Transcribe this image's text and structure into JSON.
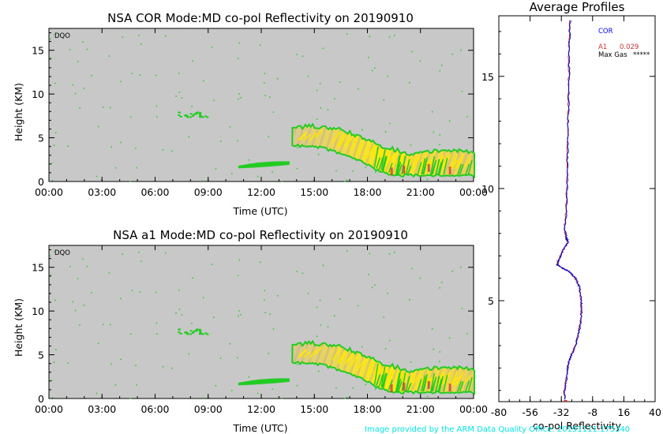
{
  "chart_data": [
    {
      "type": "heatmap",
      "title": "NSA COR  Mode:MD  co-pol Reflectivity  on 20190910",
      "xlabel": "Time (UTC)",
      "ylabel": "Height (KM)",
      "xticks": [
        "00:00",
        "03:00",
        "06:00",
        "09:00",
        "12:00",
        "15:00",
        "18:00",
        "21:00",
        "00:00"
      ],
      "yticks": [
        0,
        5,
        10,
        15
      ],
      "xlim": [
        0,
        24
      ],
      "ylim": [
        0,
        17.5
      ],
      "tag": "DQO",
      "echo": {
        "cloud_top_km": [
          [
            13.8,
            6.0
          ],
          [
            15.0,
            6.2
          ],
          [
            16.5,
            5.8
          ],
          [
            17.5,
            5.0
          ],
          [
            18.5,
            4.2
          ],
          [
            19.5,
            3.5
          ],
          [
            20.5,
            3.0
          ],
          [
            21.5,
            3.3
          ],
          [
            22.5,
            3.5
          ],
          [
            24.0,
            3.2
          ]
        ],
        "cloud_base_km": [
          [
            13.8,
            4.2
          ],
          [
            15.0,
            4.2
          ],
          [
            16.5,
            3.3
          ],
          [
            17.5,
            2.5
          ],
          [
            18.5,
            1.5
          ],
          [
            19.5,
            0.8
          ],
          [
            24.0,
            0.8
          ]
        ],
        "low_layer": {
          "x": [
            10.7,
            13.6
          ],
          "height_km": 1.8
        },
        "mid_blob": {
          "x": [
            7.2,
            9.0
          ],
          "height_km": 7.7
        },
        "colors": {
          "weak": "#22cc22",
          "medium": "#e8c878",
          "strong": "#ffe800",
          "core": "#c84040"
        }
      }
    },
    {
      "type": "heatmap",
      "title": "NSA a1  Mode:MD  co-pol Reflectivity  on 20190910",
      "xlabel": "Time (UTC)",
      "ylabel": "Height (KM)",
      "xticks": [
        "00:00",
        "03:00",
        "06:00",
        "09:00",
        "12:00",
        "15:00",
        "18:00",
        "21:00",
        "00:00"
      ],
      "yticks": [
        0,
        5,
        10,
        15
      ],
      "xlim": [
        0,
        24
      ],
      "ylim": [
        0,
        17.5
      ],
      "tag": "DQO",
      "echo": {
        "cloud_top_km": [
          [
            13.8,
            6.0
          ],
          [
            15.0,
            6.2
          ],
          [
            16.5,
            5.8
          ],
          [
            17.5,
            5.0
          ],
          [
            18.5,
            4.2
          ],
          [
            19.5,
            3.5
          ],
          [
            20.5,
            3.0
          ],
          [
            21.5,
            3.3
          ],
          [
            22.5,
            3.5
          ],
          [
            24.0,
            3.2
          ]
        ],
        "cloud_base_km": [
          [
            13.8,
            4.2
          ],
          [
            15.0,
            4.2
          ],
          [
            16.5,
            3.3
          ],
          [
            17.5,
            2.5
          ],
          [
            18.5,
            1.5
          ],
          [
            19.5,
            0.8
          ],
          [
            24.0,
            0.8
          ]
        ],
        "low_layer": {
          "x": [
            10.7,
            13.6
          ],
          "height_km": 1.8
        },
        "mid_blob": {
          "x": [
            7.2,
            9.0
          ],
          "height_km": 7.7
        },
        "colors": {
          "weak": "#22cc22",
          "medium": "#e8c878",
          "strong": "#ffe800",
          "core": "#c84040"
        }
      }
    },
    {
      "type": "line",
      "title": "Average Profiles",
      "xlabel": "co-pol Reflectivity",
      "xticks": [
        -80,
        -56,
        -32,
        -8,
        16,
        40
      ],
      "yticks": [
        5,
        10,
        15
      ],
      "xlim": [
        -80,
        40
      ],
      "ylim": [
        0.5,
        17.7
      ],
      "legend": {
        "series_label": "COR",
        "series_label_2": "A1",
        "value": "0.029",
        "extra_label": "Max Gas",
        "extra_value": "*****"
      },
      "series": [
        {
          "color": "#0000cc",
          "points": [
            [
              -25,
              17.5
            ],
            [
              -26,
              16.5
            ],
            [
              -26,
              15
            ],
            [
              -26.5,
              13.5
            ],
            [
              -27,
              12
            ],
            [
              -27.5,
              10.5
            ],
            [
              -28,
              9
            ],
            [
              -29.5,
              8.2
            ],
            [
              -28,
              7.8
            ],
            [
              -27,
              7.6
            ],
            [
              -31,
              7.2
            ],
            [
              -34,
              6.8
            ],
            [
              -35,
              6.6
            ],
            [
              -31,
              6.45
            ],
            [
              -26,
              6.3
            ],
            [
              -21,
              6.0
            ],
            [
              -18,
              5.6
            ],
            [
              -16.5,
              5.0
            ],
            [
              -16.5,
              4.5
            ],
            [
              -17,
              4.0
            ],
            [
              -19,
              3.5
            ],
            [
              -21,
              3.0
            ],
            [
              -24,
              2.6
            ],
            [
              -26,
              2.3
            ],
            [
              -27,
              2.0
            ],
            [
              -28,
              1.5
            ],
            [
              -29.5,
              1.0
            ],
            [
              -29,
              0.6
            ]
          ]
        },
        {
          "color": "#cc3333",
          "points": [
            [
              -25.3,
              17.5
            ],
            [
              -26.3,
              16.5
            ],
            [
              -26.3,
              15
            ],
            [
              -26.8,
              13.5
            ],
            [
              -27.3,
              12
            ],
            [
              -27.8,
              10.5
            ],
            [
              -28.3,
              9
            ],
            [
              -29.8,
              8.2
            ],
            [
              -28.3,
              7.8
            ],
            [
              -27.3,
              7.6
            ],
            [
              -31.3,
              7.2
            ],
            [
              -34.3,
              6.8
            ],
            [
              -35.3,
              6.6
            ],
            [
              -31.3,
              6.45
            ],
            [
              -26.3,
              6.3
            ],
            [
              -21.3,
              6.0
            ],
            [
              -18.3,
              5.6
            ],
            [
              -16.8,
              5.0
            ],
            [
              -16.8,
              4.5
            ],
            [
              -17.3,
              4.0
            ],
            [
              -19.3,
              3.5
            ],
            [
              -21.3,
              3.0
            ],
            [
              -24.3,
              2.6
            ],
            [
              -26.3,
              2.3
            ],
            [
              -27.3,
              2.0
            ],
            [
              -28.3,
              1.5
            ],
            [
              -29.8,
              1.0
            ],
            [
              -29.3,
              0.6
            ]
          ]
        }
      ]
    }
  ],
  "credit": "Image provided by the ARM Data Quality Office: 20191111.175340"
}
